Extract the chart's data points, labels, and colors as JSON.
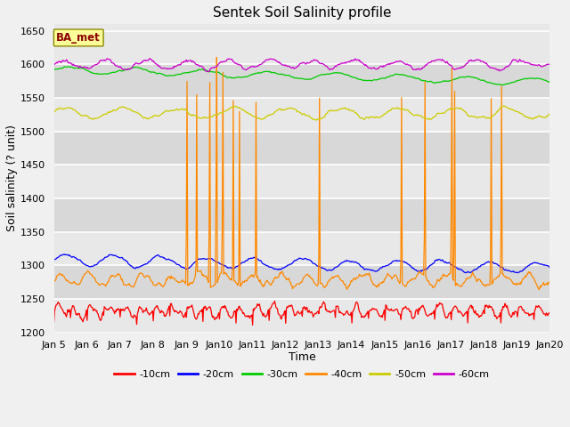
{
  "title": "Sentek Soil Salinity profile",
  "xlabel": "Time",
  "ylabel": "Soil salinity (? unit)",
  "ylim": [
    1200,
    1660
  ],
  "yticks": [
    1200,
    1250,
    1300,
    1350,
    1400,
    1450,
    1500,
    1550,
    1600,
    1650
  ],
  "date_labels": [
    "Jan 5",
    "Jan 6",
    "Jan 7",
    "Jan 8",
    "Jan 9",
    "Jan 10",
    "Jan 11",
    "Jan 12",
    "Jan 13",
    "Jan 14",
    "Jan 15",
    "Jan 16",
    "Jan 17",
    "Jan 18",
    "Jan 19",
    "Jan 20"
  ],
  "series_labels": [
    "-10cm",
    "-20cm",
    "-30cm",
    "-40cm",
    "-50cm",
    "-60cm"
  ],
  "series_colors": [
    "#ff0000",
    "#0000ff",
    "#00cc00",
    "#ff8800",
    "#cccc00",
    "#cc00cc"
  ],
  "annotation_text": "BA_met",
  "annotation_color": "#8b0000",
  "annotation_bg": "#ffff99",
  "fig_facecolor": "#f0f0f0",
  "ax_facecolor": "#e8e8e8",
  "grid_color": "#ffffff",
  "n_points": 720,
  "band_colors": [
    "#e8e8e8",
    "#d8d8d8"
  ],
  "means_10": 1232,
  "means_20": 1308,
  "means_30": 1592,
  "means_40": 1278,
  "means_50": 1527,
  "means_60": 1600
}
